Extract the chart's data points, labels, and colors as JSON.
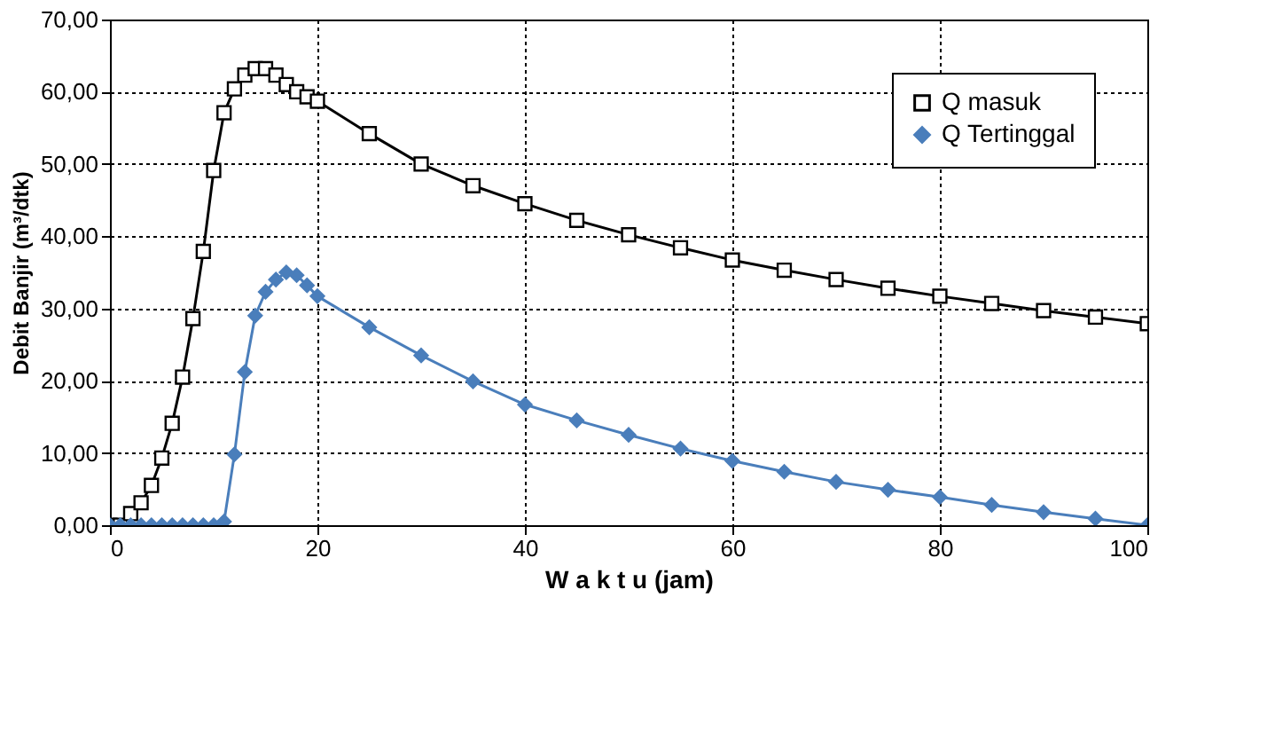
{
  "chart_data": {
    "type": "line",
    "xlabel": "W a k t u  (jam)",
    "ylabel": "Debit Banjir (m³/dtk)",
    "xlim": [
      0,
      100
    ],
    "xticks": [
      0,
      20,
      40,
      60,
      80,
      100
    ],
    "ylim": [
      0,
      70
    ],
    "yticks": [
      {
        "value": 0,
        "label": "0,00"
      },
      {
        "value": 10,
        "label": "10,00"
      },
      {
        "value": 20,
        "label": "20,00"
      },
      {
        "value": 30,
        "label": "30,00"
      },
      {
        "value": 40,
        "label": "40,00"
      },
      {
        "value": 50,
        "label": "50,00"
      },
      {
        "value": 60,
        "label": "60,00"
      },
      {
        "value": 70,
        "label": "70,00"
      }
    ],
    "grid": true,
    "legend": "top right",
    "line_style": "solid",
    "series": [
      {
        "name": "Q masuk",
        "color": "#000000",
        "marker": "square",
        "x": [
          0,
          1,
          2,
          3,
          4,
          5,
          6,
          7,
          8,
          9,
          10,
          11,
          12,
          13,
          14,
          15,
          16,
          17,
          18,
          19,
          20,
          25,
          30,
          35,
          40,
          45,
          50,
          55,
          60,
          65,
          70,
          75,
          80,
          85,
          90,
          95,
          100
        ],
        "values": [
          0,
          0,
          1.6,
          3.1,
          5.5,
          9.3,
          14.1,
          20.5,
          28.6,
          37.9,
          49.1,
          57.1,
          60.4,
          62.3,
          63.2,
          63.2,
          62.3,
          61.0,
          60.0,
          59.3,
          58.7,
          54.2,
          50.0,
          47.0,
          44.5,
          42.2,
          40.2,
          38.4,
          36.7,
          35.3,
          34.0,
          32.8,
          31.7,
          30.7,
          29.7,
          28.8,
          27.9
        ]
      },
      {
        "name": "Q Tertinggal",
        "color": "#4a7ebb",
        "marker": "diamond",
        "x": [
          0,
          1,
          2,
          3,
          4,
          5,
          6,
          7,
          8,
          9,
          10,
          11,
          12,
          13,
          14,
          15,
          16,
          17,
          18,
          19,
          20,
          25,
          30,
          35,
          40,
          45,
          50,
          55,
          60,
          65,
          70,
          75,
          80,
          85,
          90,
          95,
          100
        ],
        "values": [
          0,
          0,
          0,
          0,
          0,
          0,
          0,
          0,
          0,
          0,
          0,
          0.5,
          9.8,
          21.2,
          29.0,
          32.3,
          34.0,
          35.0,
          34.6,
          33.2,
          31.7,
          27.4,
          23.5,
          19.9,
          16.7,
          14.5,
          12.5,
          10.6,
          8.9,
          7.4,
          6.0,
          4.9,
          3.9,
          2.8,
          1.8,
          0.9,
          0
        ]
      }
    ]
  }
}
